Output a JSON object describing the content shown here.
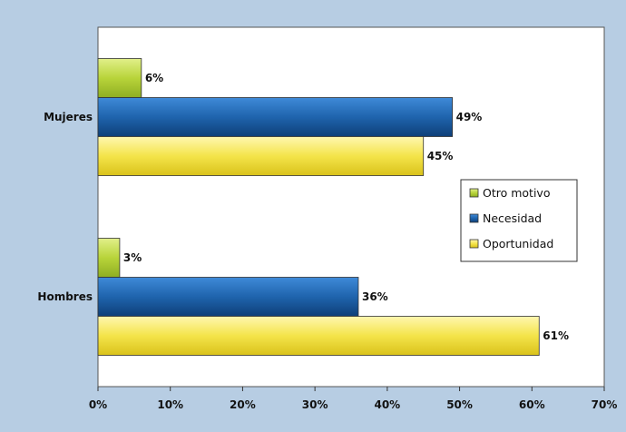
{
  "chart_data": {
    "type": "bar",
    "orientation": "horizontal",
    "categories": [
      "Mujeres",
      "Hombres"
    ],
    "series": [
      {
        "name": "Otro motivo",
        "values": [
          6,
          3
        ],
        "color": "#b8d43a"
      },
      {
        "name": "Necesidad",
        "values": [
          49,
          36
        ],
        "color": "#1f64ad"
      },
      {
        "name": "Oportunidad",
        "values": [
          45,
          61
        ],
        "color": "#f2e13c"
      }
    ],
    "value_labels": [
      [
        "6%",
        "3%"
      ],
      [
        "49%",
        "36%"
      ],
      [
        "45%",
        "61%"
      ]
    ],
    "xlim": [
      0,
      70
    ],
    "xticks": [
      0,
      10,
      20,
      30,
      40,
      50,
      60,
      70
    ],
    "xtick_labels": [
      "0%",
      "10%",
      "20%",
      "30%",
      "40%",
      "50%",
      "60%",
      "70%"
    ],
    "grid": false,
    "legend_position": "right",
    "background_color": "#b7cde3",
    "plot_background": "#ffffff"
  }
}
